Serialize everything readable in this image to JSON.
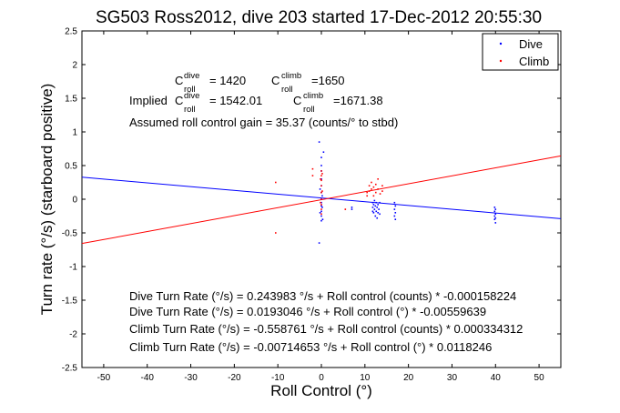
{
  "chart_data": {
    "type": "scatter",
    "title": "SG503 Ross2012, dive 203 started 17-Dec-2012 20:55:30",
    "xlabel": "Roll Control (°)",
    "ylabel": "Turn rate (°/s) (starboard positive)",
    "xlim": [
      -55,
      55
    ],
    "ylim": [
      -2.5,
      2.5
    ],
    "xticks": [
      "-50",
      "-40",
      "-30",
      "-20",
      "-10",
      "0",
      "10",
      "20",
      "30",
      "40",
      "50"
    ],
    "yticks": [
      "-2.5",
      "-2",
      "-1.5",
      "-1",
      "-0.5",
      "0",
      "0.5",
      "1",
      "1.5",
      "2",
      "2.5"
    ],
    "grid": false,
    "legend_position": "top-right",
    "colors": {
      "dive": "#0000ff",
      "climb": "#ff0000"
    },
    "series": [
      {
        "name": "Dive",
        "fit_intercept": 0.0193046,
        "fit_slope": -0.00559639,
        "points": [
          [
            0.0,
            0.62
          ],
          [
            0.0,
            0.5
          ],
          [
            0.0,
            0.42
          ],
          [
            0.0,
            0.3
          ],
          [
            0.0,
            0.2
          ],
          [
            0.0,
            0.1
          ],
          [
            0.0,
            0.0
          ],
          [
            0.0,
            -0.05
          ],
          [
            0.0,
            -0.1
          ],
          [
            0.0,
            -0.18
          ],
          [
            0.0,
            -0.25
          ],
          [
            0.0,
            -0.32
          ],
          [
            0.2,
            0.05
          ],
          [
            0.2,
            -0.12
          ],
          [
            0.3,
            -0.3
          ],
          [
            -0.3,
            0.15
          ],
          [
            -0.3,
            -0.2
          ],
          [
            -0.5,
            0.85
          ],
          [
            -0.5,
            -0.65
          ],
          [
            0.5,
            0.7
          ],
          [
            7.0,
            -0.12
          ],
          [
            7.0,
            -0.15
          ],
          [
            11.8,
            -0.05
          ],
          [
            11.8,
            -0.12
          ],
          [
            11.8,
            -0.18
          ],
          [
            12.0,
            -0.08
          ],
          [
            12.0,
            -0.2
          ],
          [
            12.2,
            -0.02
          ],
          [
            12.2,
            -0.15
          ],
          [
            12.4,
            -0.1
          ],
          [
            12.4,
            -0.25
          ],
          [
            12.6,
            -0.05
          ],
          [
            12.6,
            -0.18
          ],
          [
            12.8,
            -0.12
          ],
          [
            12.8,
            -0.28
          ],
          [
            13.0,
            -0.08
          ],
          [
            13.0,
            -0.2
          ],
          [
            13.2,
            -0.15
          ],
          [
            13.4,
            -0.05
          ],
          [
            13.4,
            -0.22
          ],
          [
            16.8,
            -0.05
          ],
          [
            16.8,
            -0.15
          ],
          [
            16.8,
            -0.25
          ],
          [
            17.0,
            -0.1
          ],
          [
            17.0,
            -0.2
          ],
          [
            17.0,
            -0.3
          ],
          [
            39.8,
            -0.12
          ],
          [
            39.8,
            -0.18
          ],
          [
            39.8,
            -0.25
          ],
          [
            39.8,
            -0.3
          ],
          [
            40.0,
            -0.15
          ],
          [
            40.0,
            -0.22
          ],
          [
            40.0,
            -0.28
          ],
          [
            40.0,
            -0.35
          ]
        ]
      },
      {
        "name": "Climb",
        "fit_intercept": -0.00714653,
        "fit_slope": 0.0118246,
        "points": [
          [
            0.0,
            0.42
          ],
          [
            0.0,
            0.35
          ],
          [
            0.0,
            0.28
          ],
          [
            0.0,
            0.2
          ],
          [
            0.0,
            0.1
          ],
          [
            0.0,
            0.0
          ],
          [
            0.0,
            -0.08
          ],
          [
            0.0,
            -0.15
          ],
          [
            0.0,
            -0.22
          ],
          [
            0.2,
            0.38
          ],
          [
            0.2,
            0.12
          ],
          [
            -0.2,
            0.3
          ],
          [
            -0.2,
            -0.05
          ],
          [
            -2.0,
            0.45
          ],
          [
            -2.0,
            0.35
          ],
          [
            -10.5,
            0.25
          ],
          [
            -10.5,
            -0.5
          ],
          [
            10.5,
            0.05
          ],
          [
            10.5,
            0.1
          ],
          [
            11.0,
            0.12
          ],
          [
            11.0,
            0.2
          ],
          [
            11.5,
            0.15
          ],
          [
            11.5,
            0.25
          ],
          [
            12.0,
            0.05
          ],
          [
            12.0,
            0.18
          ],
          [
            12.5,
            0.1
          ],
          [
            12.5,
            0.22
          ],
          [
            13.0,
            0.15
          ],
          [
            13.0,
            0.3
          ],
          [
            13.5,
            0.08
          ],
          [
            14.0,
            0.2
          ],
          [
            14.0,
            0.12
          ],
          [
            5.5,
            -0.15
          ]
        ]
      }
    ],
    "annotations": {
      "c_roll_dive": {
        "letter": "C",
        "sup": "dive",
        "sub": "roll",
        "value": "= 1420"
      },
      "c_roll_climb": {
        "letter": "C",
        "sup": "climb",
        "sub": "roll",
        "value": "=1650"
      },
      "implied_dive_prefix": "Implied",
      "implied_dive": {
        "letter": "C",
        "sup": "dive",
        "sub": "roll",
        "value": "= 1542.01"
      },
      "implied_climb": {
        "letter": "C",
        "sup": "climb",
        "sub": "roll",
        "value": "=1671.38"
      },
      "gain": "Assumed roll control gain = 35.37 (counts/° to stbd)",
      "fit_lines": [
        "Dive Turn Rate (°/s) = 0.243983 °/s + Roll control (counts) * -0.000158224",
        "Dive Turn Rate (°/s) = 0.0193046 °/s + Roll control (°) * -0.00559639",
        "Climb Turn Rate (°/s) = -0.558761 °/s + Roll control (counts) * 0.000334312",
        "Climb Turn Rate (°/s) = -0.00714653 °/s + Roll control (°) * 0.0118246"
      ]
    }
  }
}
